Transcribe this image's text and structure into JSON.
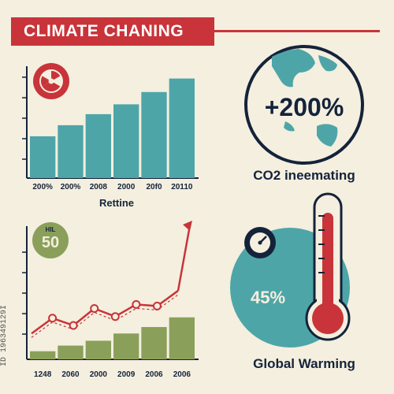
{
  "header": {
    "title": "CLIMATE CHANING"
  },
  "side_id": "ID 196349129I",
  "colors": {
    "background": "#f4efdf",
    "red": "#c8343a",
    "teal": "#4ea5a8",
    "green": "#8aa05a",
    "navy": "#14233a",
    "cream": "#f4efdf"
  },
  "chart_data": [
    {
      "type": "bar",
      "categories": [
        "200%",
        "200%",
        "2008",
        "2000",
        "20f0",
        "20110"
      ],
      "values": [
        34,
        43,
        52,
        60,
        70,
        81
      ],
      "ylim": [
        0,
        100
      ],
      "caption": "Rettine",
      "badge_icon": "radiation-icon"
    },
    {
      "type": "bar+line",
      "categories": [
        "1248",
        "2060",
        "2000",
        "2009",
        "2006",
        "2006"
      ],
      "bars": [
        10,
        17,
        23,
        32,
        40,
        52
      ],
      "line": [
        32,
        51,
        42,
        63,
        53,
        68,
        66,
        85
      ],
      "ylim": [
        0,
        165
      ],
      "badge_label": "HIL",
      "badge_value": "50"
    },
    {
      "type": "stat",
      "value": "+200%",
      "caption": "CO2 ineemating",
      "icon": "globe-icon"
    },
    {
      "type": "stat",
      "value": "45%",
      "caption": "Global Warming",
      "icons": [
        "gauge-icon",
        "thermometer-icon"
      ]
    }
  ]
}
